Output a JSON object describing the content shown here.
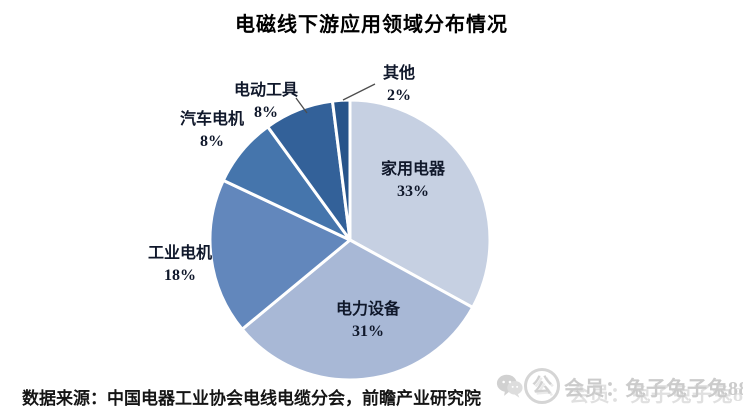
{
  "title": "电磁线下游应用领域分布情况",
  "source": "数据来源：中国电器工业协会电线电缆分会，前瞻产业研究院",
  "watermark": {
    "text": "会员：兔子兔子兔888",
    "wechat_icon": "wechat-logo",
    "account_icon": "circled-gong-logo",
    "account_icon_glyph": "公",
    "color": "#c9c9c9"
  },
  "chart_data": {
    "type": "pie",
    "title": "电磁线下游应用领域分布情况",
    "start_angle_deg_from_top": 0,
    "direction": "clockwise",
    "legend": "none",
    "slice_border_color": "#ffffff",
    "segments": [
      {
        "label": "家用电器",
        "value": 33,
        "pct_label": "33%",
        "color": "#c6d0e2",
        "label_placement": "inside"
      },
      {
        "label": "电力设备",
        "value": 31,
        "pct_label": "31%",
        "color": "#a8b8d6",
        "label_placement": "inside"
      },
      {
        "label": "工业电机",
        "value": 18,
        "pct_label": "18%",
        "color": "#6287bc",
        "label_placement": "outside"
      },
      {
        "label": "汽车电机",
        "value": 8,
        "pct_label": "8%",
        "color": "#4575ac",
        "label_placement": "outside"
      },
      {
        "label": "电动工具",
        "value": 8,
        "pct_label": "8%",
        "color": "#336199",
        "label_placement": "outside-leader"
      },
      {
        "label": "其他",
        "value": 2,
        "pct_label": "2%",
        "color": "#27548a",
        "label_placement": "outside-leader"
      }
    ]
  }
}
